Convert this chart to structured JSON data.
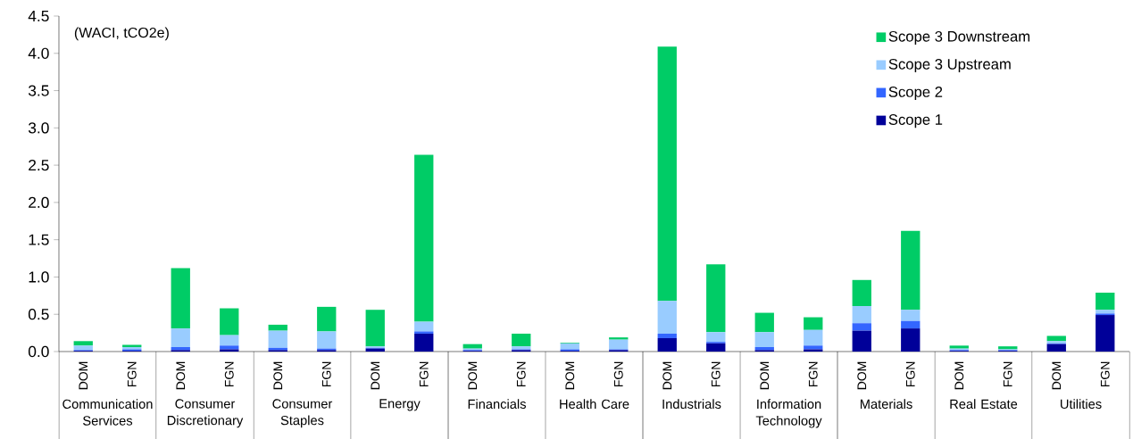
{
  "chart_data": {
    "type": "bar",
    "stacked": true,
    "ylabel": "(WACI, tCO2e)",
    "categories": [
      "DOM",
      "FGN",
      "DOM",
      "FGN",
      "DOM",
      "FGN",
      "DOM",
      "FGN",
      "DOM",
      "FGN",
      "DOM",
      "FGN",
      "DOM",
      "FGN",
      "DOM",
      "FGN",
      "DOM",
      "FGN",
      "DOM",
      "FGN",
      "DOM",
      "FGN"
    ],
    "annotations": [
      "Communication Services",
      "Consumer Discretionary",
      "Consumer Staples",
      "Energy",
      "Financials",
      "Health Care",
      "Industrials",
      "Information Technology",
      "Materials",
      "Real Estate",
      "Utilities"
    ],
    "series": [
      {
        "name": "Scope 1",
        "color": "#000099",
        "values": [
          0.01,
          0.01,
          0.02,
          0.03,
          0.02,
          0.02,
          0.04,
          0.24,
          0.01,
          0.02,
          0.01,
          0.02,
          0.18,
          0.11,
          0.02,
          0.03,
          0.28,
          0.31,
          0.01,
          0.01,
          0.1,
          0.49
        ]
      },
      {
        "name": "Scope 2",
        "color": "#3366ff",
        "values": [
          0.01,
          0.02,
          0.04,
          0.05,
          0.03,
          0.02,
          0.01,
          0.03,
          0.01,
          0.01,
          0.02,
          0.01,
          0.06,
          0.02,
          0.04,
          0.05,
          0.1,
          0.1,
          0.01,
          0.01,
          0.01,
          0.02
        ]
      },
      {
        "name": "Scope 3 Upstream",
        "color": "#99ccff",
        "values": [
          0.06,
          0.03,
          0.25,
          0.14,
          0.23,
          0.23,
          0.02,
          0.13,
          0.02,
          0.04,
          0.08,
          0.13,
          0.44,
          0.13,
          0.2,
          0.21,
          0.23,
          0.15,
          0.02,
          0.01,
          0.03,
          0.05
        ]
      },
      {
        "name": "Scope 3 Downstream",
        "color": "#00cc66",
        "values": [
          0.06,
          0.03,
          0.81,
          0.36,
          0.08,
          0.33,
          0.49,
          2.24,
          0.06,
          0.17,
          0.01,
          0.03,
          3.41,
          0.91,
          0.26,
          0.17,
          0.35,
          1.06,
          0.04,
          0.04,
          0.07,
          0.23
        ]
      }
    ],
    "ylim": [
      0,
      4.5
    ],
    "yticks": [
      {
        "value": 0,
        "label": "0.0"
      },
      {
        "value": 0.5,
        "label": "0.5"
      },
      {
        "value": 1,
        "label": "1.0"
      },
      {
        "value": 1.5,
        "label": "1.5"
      },
      {
        "value": 2,
        "label": "2.0"
      },
      {
        "value": 2.5,
        "label": "2.5"
      },
      {
        "value": 3,
        "label": "3.0"
      },
      {
        "value": 3.5,
        "label": "3.5"
      },
      {
        "value": 4,
        "label": "4.0"
      },
      {
        "value": 4.5,
        "label": "4.5"
      }
    ],
    "legend": "top right"
  }
}
